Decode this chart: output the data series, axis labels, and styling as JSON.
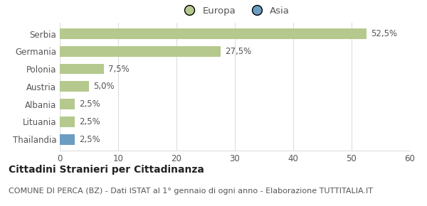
{
  "categories": [
    "Serbia",
    "Germania",
    "Polonia",
    "Austria",
    "Albania",
    "Lituania",
    "Thailandia"
  ],
  "values": [
    52.5,
    27.5,
    7.5,
    5.0,
    2.5,
    2.5,
    2.5
  ],
  "colors": [
    "#b5c98e",
    "#b5c98e",
    "#b5c98e",
    "#b5c98e",
    "#b5c98e",
    "#b5c98e",
    "#6b9dc2"
  ],
  "labels": [
    "52,5%",
    "27,5%",
    "7,5%",
    "5,0%",
    "2,5%",
    "2,5%",
    "2,5%"
  ],
  "xlim": [
    0,
    60
  ],
  "xticks": [
    0,
    10,
    20,
    30,
    40,
    50,
    60
  ],
  "legend_europa_color": "#b5c98e",
  "legend_asia_color": "#6b9dc2",
  "legend_europa_label": "Europa",
  "legend_asia_label": "Asia",
  "title": "Cittadini Stranieri per Cittadinanza",
  "subtitle": "COMUNE DI PERCA (BZ) - Dati ISTAT al 1° gennaio di ogni anno - Elaborazione TUTTITALIA.IT",
  "background_color": "#ffffff",
  "grid_color": "#dddddd",
  "bar_height": 0.6,
  "title_fontsize": 10,
  "subtitle_fontsize": 8,
  "label_fontsize": 8.5,
  "tick_fontsize": 8.5,
  "legend_fontsize": 9.5
}
